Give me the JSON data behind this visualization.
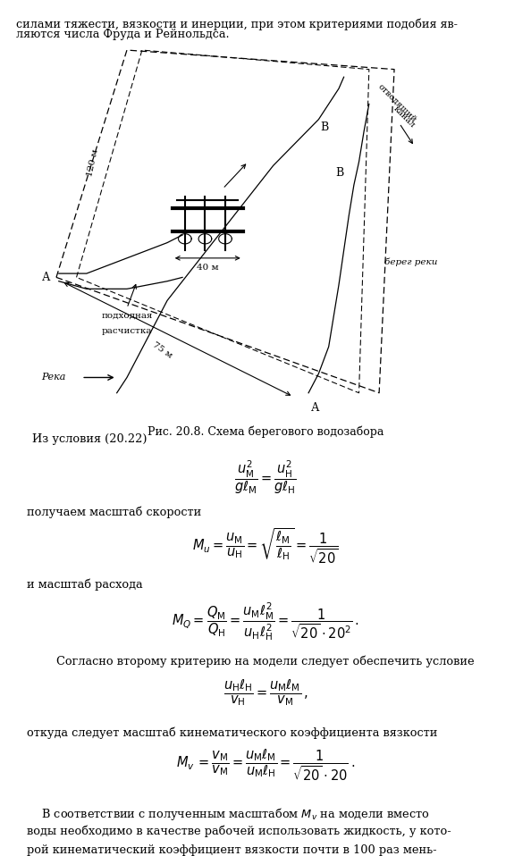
{
  "bg_color": "#ffffff",
  "text_color": "#000000",
  "fig_width": 5.94,
  "fig_height": 9.58,
  "top_text_line1": "силами тяжести, вязкости и инерции, при этом критериями подобия яв-",
  "top_text_line2": "ляются числа Фруда и Рейнольдса.",
  "caption": "Рис. 20.8. Схема берегового водозабора"
}
